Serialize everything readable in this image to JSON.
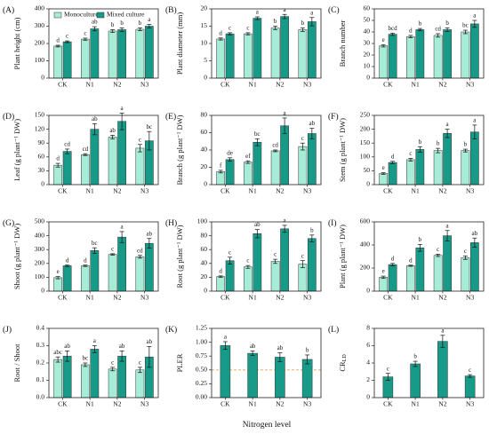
{
  "x_label": "Nitrogen level",
  "chart_data": [
    {
      "type": "bar",
      "panel": "(A)",
      "y_label": "Plant height (cm)",
      "categories": [
        "CK",
        "N1",
        "N2",
        "N3"
      ],
      "ylim": [
        0,
        400
      ],
      "yticks": [
        0,
        100,
        200,
        300,
        400
      ],
      "legend": "upper left",
      "series": [
        {
          "name": "Monoculture",
          "color": "#a6ecd6",
          "values": [
            185,
            225,
            272,
            282
          ],
          "errors": [
            5,
            6,
            8,
            8
          ],
          "letters": [
            "d",
            "c",
            "b",
            "b"
          ]
        },
        {
          "name": "Mixed culture",
          "color": "#179a88",
          "values": [
            210,
            285,
            280,
            300
          ],
          "errors": [
            5,
            12,
            10,
            10
          ],
          "letters": [
            "c",
            "ab",
            "b",
            "a"
          ]
        }
      ]
    },
    {
      "type": "bar",
      "panel": "(B)",
      "y_label": "Plant diameter (mm)",
      "categories": [
        "CK",
        "N1",
        "N2",
        "N3"
      ],
      "ylim": [
        0,
        20
      ],
      "yticks": [
        0,
        5,
        10,
        15,
        20
      ],
      "series": [
        {
          "color": "#a6ecd6",
          "values": [
            11.3,
            12.8,
            14.5,
            14.0
          ],
          "errors": [
            0.3,
            0.3,
            0.5,
            0.5
          ],
          "letters": [
            "d",
            "c",
            "b",
            "b"
          ]
        },
        {
          "color": "#179a88",
          "values": [
            12.8,
            17.3,
            17.8,
            16.3
          ],
          "errors": [
            0.3,
            0.4,
            0.6,
            1.2
          ],
          "letters": [
            "c",
            "a",
            "a",
            "a"
          ]
        }
      ]
    },
    {
      "type": "bar",
      "panel": "(C)",
      "y_label": "Branch number",
      "categories": [
        "CK",
        "N1",
        "N2",
        "N3"
      ],
      "ylim": [
        0,
        60
      ],
      "yticks": [
        0,
        10,
        20,
        30,
        40,
        50,
        60
      ],
      "series": [
        {
          "color": "#a6ecd6",
          "values": [
            28,
            36,
            37,
            40
          ],
          "errors": [
            1,
            1,
            1.5,
            1.5
          ],
          "letters": [
            "e",
            "d",
            "cd",
            "bc"
          ]
        },
        {
          "color": "#179a88",
          "values": [
            38,
            42,
            42,
            47
          ],
          "errors": [
            1,
            1,
            1.5,
            3
          ],
          "letters": [
            "bcd",
            "b",
            "b",
            "a"
          ]
        }
      ]
    },
    {
      "type": "bar",
      "panel": "(D)",
      "y_label": "Leaf (g plant⁻¹ DW)",
      "categories": [
        "CK",
        "N1",
        "N2",
        "N3"
      ],
      "ylim": [
        0,
        150
      ],
      "yticks": [
        0,
        30,
        60,
        90,
        120,
        150
      ],
      "series": [
        {
          "color": "#a6ecd6",
          "values": [
            42,
            65,
            103,
            79
          ],
          "errors": [
            4,
            2,
            4,
            8
          ],
          "letters": [
            "d",
            "cd",
            "ab",
            "c"
          ]
        },
        {
          "color": "#179a88",
          "values": [
            72,
            120,
            137,
            95
          ],
          "errors": [
            5,
            12,
            18,
            20
          ],
          "letters": [
            "cd",
            "ab",
            "a",
            "bc"
          ]
        }
      ]
    },
    {
      "type": "bar",
      "panel": "(E)",
      "y_label": "Branch (g plant⁻¹ DW)",
      "categories": [
        "CK",
        "N1",
        "N2",
        "N3"
      ],
      "ylim": [
        0,
        80
      ],
      "yticks": [
        0,
        20,
        40,
        60,
        80
      ],
      "series": [
        {
          "color": "#a6ecd6",
          "values": [
            15,
            26,
            39,
            44
          ],
          "errors": [
            1.5,
            1.5,
            1,
            4
          ],
          "letters": [
            "f",
            "ef",
            "cd",
            "c"
          ]
        },
        {
          "color": "#179a88",
          "values": [
            29,
            49,
            68,
            59
          ],
          "errors": [
            2,
            4,
            9,
            6
          ],
          "letters": [
            "de",
            "bc",
            "a",
            "ab"
          ]
        }
      ]
    },
    {
      "type": "bar",
      "panel": "(F)",
      "y_label": "Stem (g plant⁻¹ DW)",
      "categories": [
        "CK",
        "N1",
        "N2",
        "N3"
      ],
      "ylim": [
        0,
        250
      ],
      "yticks": [
        0,
        50,
        100,
        150,
        200,
        250
      ],
      "series": [
        {
          "color": "#a6ecd6",
          "values": [
            40,
            90,
            123,
            123
          ],
          "errors": [
            3,
            5,
            8,
            5
          ],
          "letters": [
            "e",
            "c",
            "b",
            "b"
          ]
        },
        {
          "color": "#179a88",
          "values": [
            80,
            127,
            185,
            190
          ],
          "errors": [
            4,
            10,
            15,
            25
          ],
          "letters": [
            "d",
            "b",
            "a",
            "a"
          ]
        }
      ]
    },
    {
      "type": "bar",
      "panel": "(G)",
      "y_label": "Shoot (g plant⁻¹ DW)",
      "categories": [
        "CK",
        "N1",
        "N2",
        "N3"
      ],
      "ylim": [
        0,
        500
      ],
      "yticks": [
        0,
        100,
        200,
        300,
        400,
        500
      ],
      "series": [
        {
          "color": "#a6ecd6",
          "values": [
            97,
            183,
            265,
            248
          ],
          "errors": [
            8,
            5,
            5,
            10
          ],
          "letters": [
            "e",
            "d",
            "c",
            "cd"
          ]
        },
        {
          "color": "#179a88",
          "values": [
            183,
            293,
            390,
            345
          ],
          "errors": [
            5,
            20,
            40,
            35
          ],
          "letters": [
            "d",
            "bc",
            "a",
            "ab"
          ]
        }
      ]
    },
    {
      "type": "bar",
      "panel": "(H)",
      "y_label": "Root (g plant⁻¹ DW)",
      "categories": [
        "CK",
        "N1",
        "N2",
        "N3"
      ],
      "ylim": [
        0,
        100
      ],
      "yticks": [
        0,
        20,
        40,
        60,
        80,
        100
      ],
      "series": [
        {
          "color": "#a6ecd6",
          "values": [
            21,
            35,
            43,
            39
          ],
          "errors": [
            1,
            2,
            3,
            5
          ],
          "letters": [
            "d",
            "c",
            "c",
            "c"
          ]
        },
        {
          "color": "#179a88",
          "values": [
            44,
            83,
            90,
            76
          ],
          "errors": [
            5,
            6,
            5,
            5
          ],
          "letters": [
            "c",
            "ab",
            "a",
            "b"
          ]
        }
      ]
    },
    {
      "type": "bar",
      "panel": "(I)",
      "y_label": "Plant (g plant⁻¹ DW)",
      "categories": [
        "CK",
        "N1",
        "N2",
        "N3"
      ],
      "ylim": [
        0,
        600
      ],
      "yticks": [
        0,
        200,
        400,
        600
      ],
      "series": [
        {
          "color": "#a6ecd6",
          "values": [
            120,
            220,
            310,
            290
          ],
          "errors": [
            10,
            5,
            10,
            15
          ],
          "letters": [
            "e",
            "d",
            "c",
            "c"
          ]
        },
        {
          "color": "#179a88",
          "values": [
            230,
            375,
            480,
            420
          ],
          "errors": [
            10,
            30,
            45,
            40
          ],
          "letters": [
            "d",
            "b",
            "a",
            "ab"
          ]
        }
      ]
    },
    {
      "type": "bar",
      "panel": "(J)",
      "y_label": "Root / Shoot",
      "categories": [
        "CK",
        "N1",
        "N2",
        "N3"
      ],
      "ylim": [
        0,
        0.4
      ],
      "yticks": [
        {
          "value": 0,
          "label": "0.0"
        },
        0.1,
        0.2,
        0.3,
        0.4
      ],
      "series": [
        {
          "color": "#a6ecd6",
          "values": [
            0.22,
            0.19,
            0.165,
            0.16
          ],
          "errors": [
            0.015,
            0.01,
            0.01,
            0.015
          ],
          "letters": [
            "abc",
            "bc",
            "c",
            "c"
          ]
        },
        {
          "color": "#179a88",
          "values": [
            0.24,
            0.28,
            0.24,
            0.235
          ],
          "errors": [
            0.03,
            0.02,
            0.03,
            0.06
          ],
          "letters": [
            "ab",
            "a",
            "ab",
            "ab"
          ]
        }
      ]
    },
    {
      "type": "bar",
      "panel": "(K)",
      "y_label": "PLER",
      "categories": [
        "CK",
        "N1",
        "N2",
        "N3"
      ],
      "ylim": [
        0,
        1.25
      ],
      "yticks": [
        {
          "value": 0,
          "label": "0.00"
        },
        {
          "value": 0.25,
          "label": "0.25"
        },
        {
          "value": 0.5,
          "label": "0.50"
        },
        {
          "value": 0.75,
          "label": "0.75"
        },
        {
          "value": 1,
          "label": "1.00"
        },
        {
          "value": 1.25,
          "label": "1.25"
        }
      ],
      "reference_line": 0.5,
      "reference_color": "#f0a050",
      "series": [
        {
          "color": "#179a88",
          "values": [
            0.94,
            0.8,
            0.73,
            0.69
          ],
          "errors": [
            0.07,
            0.04,
            0.08,
            0.08
          ],
          "letters": [
            "a",
            "ab",
            "ab",
            "b"
          ]
        }
      ]
    },
    {
      "type": "bar",
      "panel": "(L)",
      "y_label": "CR",
      "y_label_subscript": "LD",
      "categories": [
        "CK",
        "N1",
        "N2",
        "N3"
      ],
      "ylim": [
        0,
        8
      ],
      "yticks": [
        0,
        2,
        4,
        6,
        8
      ],
      "series": [
        {
          "color": "#179a88",
          "values": [
            2.4,
            3.9,
            6.5,
            2.5
          ],
          "errors": [
            0.4,
            0.3,
            0.7,
            0.15
          ],
          "letters": [
            "c",
            "b",
            "a",
            "c"
          ]
        }
      ]
    }
  ]
}
